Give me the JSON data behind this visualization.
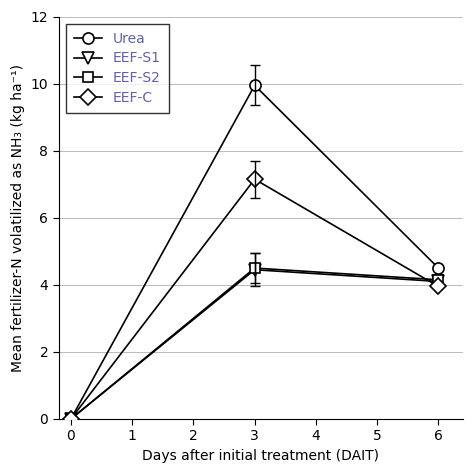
{
  "x": [
    0,
    3,
    6
  ],
  "series": {
    "Urea": {
      "y": [
        0.0,
        9.95,
        4.5
      ],
      "yerr": [
        0,
        0.6,
        0
      ],
      "marker": "o",
      "ms": 8
    },
    "EEF-S1": {
      "y": [
        0.0,
        4.45,
        4.1
      ],
      "yerr": [
        0,
        0.5,
        0
      ],
      "marker": "v",
      "ms": 8
    },
    "EEF-S2": {
      "y": [
        0.0,
        4.5,
        4.15
      ],
      "yerr": [
        0,
        0.45,
        0
      ],
      "marker": "s",
      "ms": 7
    },
    "EEF-C": {
      "y": [
        0.0,
        7.15,
        3.95
      ],
      "yerr": [
        0,
        0.55,
        0
      ],
      "marker": "D",
      "ms": 8
    }
  },
  "legend_labels": [
    "Urea",
    "EEF-S1",
    "EEF-S2",
    "EEF-C"
  ],
  "legend_text_color": "#6060b0",
  "xlabel": "Days after initial treatment (DAIT)",
  "ylabel": "Mean fertilizer-N volatilized as NH₃ (kg ha⁻¹)",
  "xlim": [
    -0.2,
    6.4
  ],
  "ylim": [
    0,
    12
  ],
  "xticks": [
    0,
    1,
    2,
    3,
    4,
    5,
    6
  ],
  "yticks": [
    0,
    2,
    4,
    6,
    8,
    10,
    12
  ],
  "line_color": "#000000",
  "grid_color": "#bbbbbb",
  "bg_color": "#ffffff",
  "label_fontsize": 10,
  "tick_fontsize": 10,
  "legend_fontsize": 10,
  "linewidth": 1.2
}
